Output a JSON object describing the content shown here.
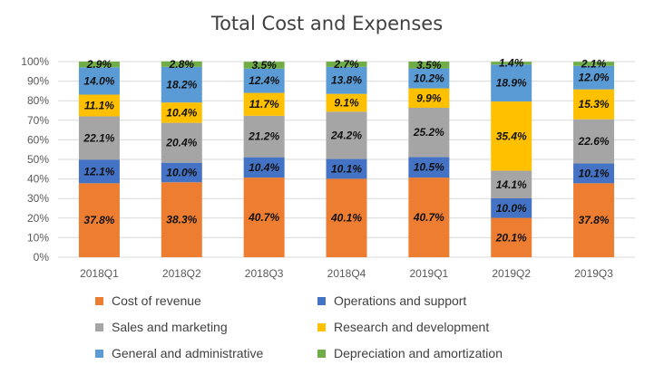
{
  "chart_data": {
    "type": "bar",
    "stacked": "percent",
    "title": "Total Cost and Expenses",
    "categories": [
      "2018Q1",
      "2018Q2",
      "2018Q3",
      "2018Q4",
      "2019Q1",
      "2019Q2",
      "2019Q3"
    ],
    "series": [
      {
        "name": "Cost of revenue",
        "color": "#ED7D31",
        "values": [
          37.8,
          38.3,
          40.7,
          40.1,
          40.7,
          20.1,
          37.8
        ],
        "labels": [
          "37.8%",
          "38.3%",
          "40.7%",
          "40.1%",
          "40.7%",
          "20.1%",
          "37.8%"
        ]
      },
      {
        "name": "Operations and support",
        "color": "#4472C4",
        "values": [
          12.1,
          10.0,
          10.4,
          10.1,
          10.5,
          10.0,
          10.1
        ],
        "labels": [
          "12.1%",
          "10.0%",
          "10.4%",
          "10.1%",
          "10.5%",
          "10.0%",
          "10.1%"
        ]
      },
      {
        "name": "Sales and marketing",
        "color": "#A5A5A5",
        "values": [
          22.1,
          20.4,
          21.2,
          24.2,
          25.2,
          14.1,
          22.6
        ],
        "labels": [
          "22.1%",
          "20.4%",
          "21.2%",
          "24.2%",
          "25.2%",
          "14.1%",
          "22.6%"
        ]
      },
      {
        "name": "Research and development",
        "color": "#FFC000",
        "values": [
          11.1,
          10.4,
          11.7,
          9.1,
          9.9,
          35.4,
          15.3
        ],
        "labels": [
          "11.1%",
          "10.4%",
          "11.7%",
          "9.1%",
          "9.9%",
          "35.4%",
          "15.3%"
        ]
      },
      {
        "name": "General and administrative",
        "color": "#5B9BD5",
        "values": [
          14.0,
          18.2,
          12.4,
          13.8,
          10.2,
          18.9,
          12.0
        ],
        "labels": [
          "14.0%",
          "18.2%",
          "12.4%",
          "13.8%",
          "10.2%",
          "18.9%",
          "12.0%"
        ]
      },
      {
        "name": "Depreciation and amortization",
        "color": "#70AD47",
        "values": [
          2.9,
          2.8,
          3.5,
          2.7,
          3.5,
          1.4,
          2.1
        ],
        "labels": [
          "2.9%",
          "2.8%",
          "3.5%",
          "2.7%",
          "3.5%",
          "1.4%",
          "2.1%"
        ]
      }
    ],
    "yticks": [
      "0%",
      "10%",
      "20%",
      "30%",
      "40%",
      "50%",
      "60%",
      "70%",
      "80%",
      "90%",
      "100%"
    ],
    "ylim": [
      0,
      100
    ],
    "grid": true,
    "gridline_color": "#D9D9D9",
    "legend_position": "bottom"
  }
}
